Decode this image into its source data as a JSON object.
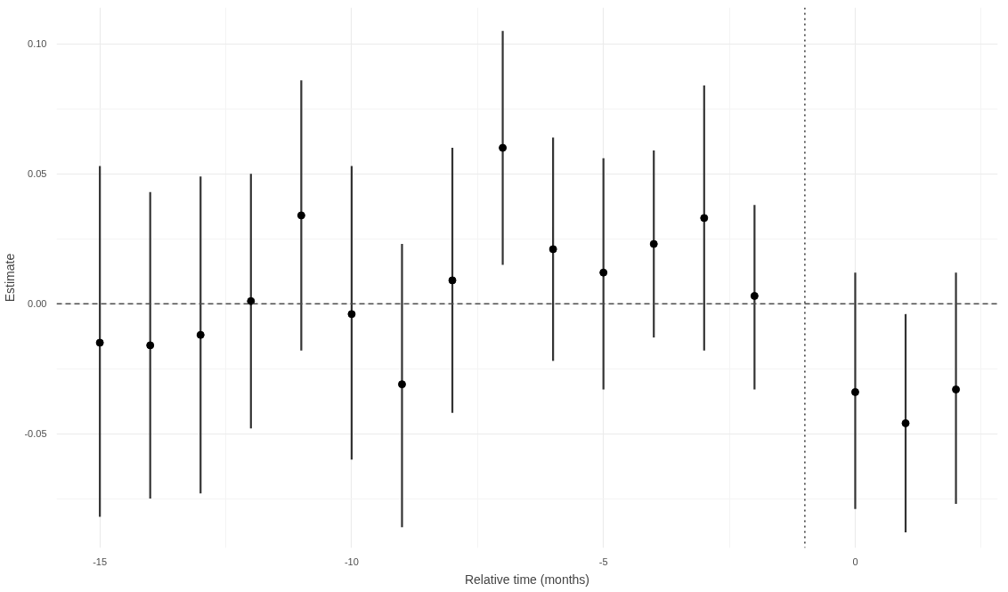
{
  "chart_data": {
    "type": "scatter",
    "xlabel": "Relative time (months)",
    "ylabel": "Estimate",
    "x": [
      -15,
      -14,
      -13,
      -12,
      -11,
      -10,
      -9,
      -8,
      -7,
      -6,
      -5,
      -4,
      -3,
      -2,
      0,
      1,
      2
    ],
    "series": [
      {
        "color": "#000000",
        "values": [
          -0.015,
          -0.016,
          -0.012,
          0.001,
          0.034,
          -0.004,
          -0.031,
          0.009,
          0.06,
          0.021,
          0.012,
          0.023,
          0.033,
          0.003,
          -0.034,
          -0.046,
          -0.033
        ],
        "errors": [
          [
            -0.082,
            0.053
          ],
          [
            -0.075,
            0.043
          ],
          [
            -0.073,
            0.049
          ],
          [
            -0.048,
            0.05
          ],
          [
            -0.018,
            0.086
          ],
          [
            -0.06,
            0.053
          ],
          [
            -0.086,
            0.023
          ],
          [
            -0.042,
            0.06
          ],
          [
            0.015,
            0.105
          ],
          [
            -0.022,
            0.064
          ],
          [
            -0.033,
            0.056
          ],
          [
            -0.013,
            0.059
          ],
          [
            -0.018,
            0.084
          ],
          [
            -0.033,
            0.038
          ],
          [
            -0.079,
            0.012
          ],
          [
            -0.088,
            -0.004
          ],
          [
            -0.077,
            0.012
          ]
        ]
      }
    ],
    "xlim": [
      -15.86,
      2.83
    ],
    "ylim": [
      -0.094,
      0.114
    ],
    "xticks": [
      -15,
      -10,
      -5,
      0
    ],
    "yticks": [
      {
        "value": -0.05,
        "label": "-0.05"
      },
      {
        "value": 0,
        "label": "0.00"
      },
      {
        "value": 0.05,
        "label": "0.05"
      },
      {
        "value": 0.1,
        "label": "0.10"
      }
    ],
    "ref_lines": [
      {
        "axis": "y",
        "value": 0,
        "color": "#4d4d4d",
        "line_style": "dashed"
      },
      {
        "axis": "x",
        "value": -1,
        "color": "#000000",
        "line_style": "dotted"
      }
    ],
    "grid": true,
    "marker": "circle"
  }
}
